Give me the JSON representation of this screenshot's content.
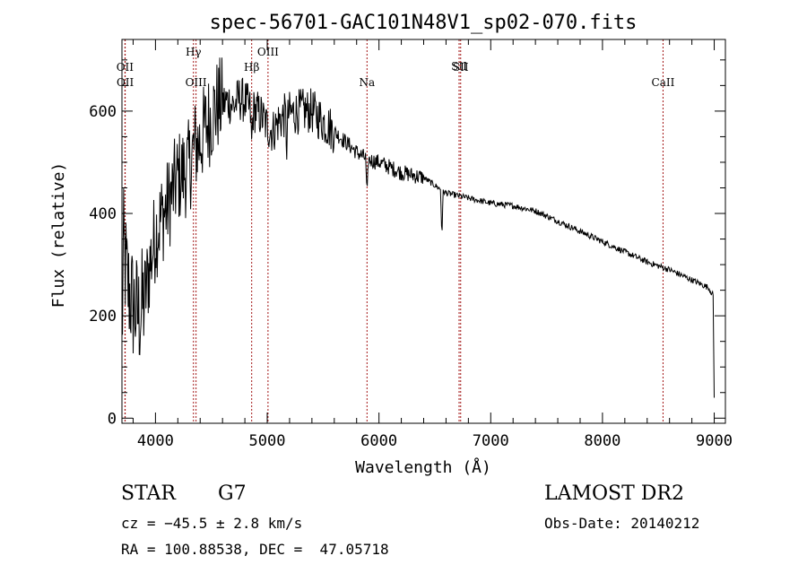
{
  "chart_data": {
    "type": "line",
    "title": "spec-56701-GAC101N48V1_sp02-070.fits",
    "xlabel": "Wavelength (Å)",
    "ylabel": "Flux (relative)",
    "xlim": [
      3700,
      9100
    ],
    "ylim": [
      -10,
      740
    ],
    "x_ticks": [
      4000,
      5000,
      6000,
      7000,
      8000,
      9000
    ],
    "y_ticks": [
      0,
      200,
      400,
      600
    ],
    "line_markers": [
      {
        "label": "OII",
        "wavelength": 3727,
        "row": 2
      },
      {
        "label": "OII",
        "wavelength": 3729,
        "row": 3
      },
      {
        "label": "Hγ",
        "wavelength": 4340,
        "row": 0
      },
      {
        "label": "OIII",
        "wavelength": 4363,
        "row": 3
      },
      {
        "label": "Hβ",
        "wavelength": 4861,
        "row": 2
      },
      {
        "label": "OIII",
        "wavelength": 5007,
        "row": 0
      },
      {
        "label": "Na",
        "wavelength": 5893,
        "row": 3
      },
      {
        "label": "SII",
        "wavelength": 6717,
        "row": 1
      },
      {
        "label": "SII",
        "wavelength": 6731,
        "row": 2
      },
      {
        "label": "CaII",
        "wavelength": 8542,
        "row": 3
      }
    ],
    "series": [
      {
        "name": "flux",
        "anchors": [
          [
            3700,
            150
          ],
          [
            3715,
            330
          ],
          [
            3750,
            260
          ],
          [
            3800,
            220
          ],
          [
            3850,
            200
          ],
          [
            3900,
            230
          ],
          [
            3950,
            300
          ],
          [
            4000,
            360
          ],
          [
            4050,
            390
          ],
          [
            4100,
            410
          ],
          [
            4150,
            440
          ],
          [
            4200,
            470
          ],
          [
            4250,
            480
          ],
          [
            4300,
            490
          ],
          [
            4350,
            530
          ],
          [
            4400,
            540
          ],
          [
            4450,
            570
          ],
          [
            4500,
            590
          ],
          [
            4550,
            610
          ],
          [
            4600,
            615
          ],
          [
            4650,
            620
          ],
          [
            4700,
            610
          ],
          [
            4750,
            625
          ],
          [
            4800,
            620
          ],
          [
            4850,
            600
          ],
          [
            4900,
            600
          ],
          [
            4950,
            590
          ],
          [
            5000,
            570
          ],
          [
            5050,
            560
          ],
          [
            5100,
            580
          ],
          [
            5150,
            590
          ],
          [
            5200,
            595
          ],
          [
            5300,
            600
          ],
          [
            5400,
            600
          ],
          [
            5500,
            580
          ],
          [
            5600,
            560
          ],
          [
            5700,
            540
          ],
          [
            5800,
            520
          ],
          [
            5900,
            505
          ],
          [
            6000,
            500
          ],
          [
            6200,
            480
          ],
          [
            6400,
            470
          ],
          [
            6600,
            440
          ],
          [
            6800,
            430
          ],
          [
            7000,
            420
          ],
          [
            7200,
            415
          ],
          [
            7400,
            405
          ],
          [
            7600,
            385
          ],
          [
            7800,
            365
          ],
          [
            8000,
            345
          ],
          [
            8200,
            325
          ],
          [
            8400,
            305
          ],
          [
            8600,
            290
          ],
          [
            8800,
            270
          ],
          [
            8950,
            255
          ],
          [
            8990,
            240
          ],
          [
            9000,
            40
          ]
        ],
        "noise": [
          {
            "from": 3700,
            "to": 3900,
            "amplitude": 120
          },
          {
            "from": 3900,
            "to": 4600,
            "amplitude": 95
          },
          {
            "from": 4600,
            "to": 5600,
            "amplitude": 45
          },
          {
            "from": 5600,
            "to": 6400,
            "amplitude": 16
          },
          {
            "from": 6400,
            "to": 9000,
            "amplitude": 6
          }
        ],
        "absorption_dips": [
          {
            "wavelength": 5893,
            "depth": 80
          },
          {
            "wavelength": 6563,
            "depth": 90
          },
          {
            "wavelength": 5175,
            "depth": 60
          },
          {
            "wavelength": 4861,
            "depth": 70
          }
        ]
      }
    ]
  },
  "info": {
    "object_type": "STAR",
    "subclass": "G7",
    "survey": "LAMOST DR2",
    "velocity": "cz = −45.5 ± 2.8 km/s",
    "obs_date": "Obs-Date: 20140212",
    "coords": "RA = 100.88538, DEC =  47.05718"
  }
}
